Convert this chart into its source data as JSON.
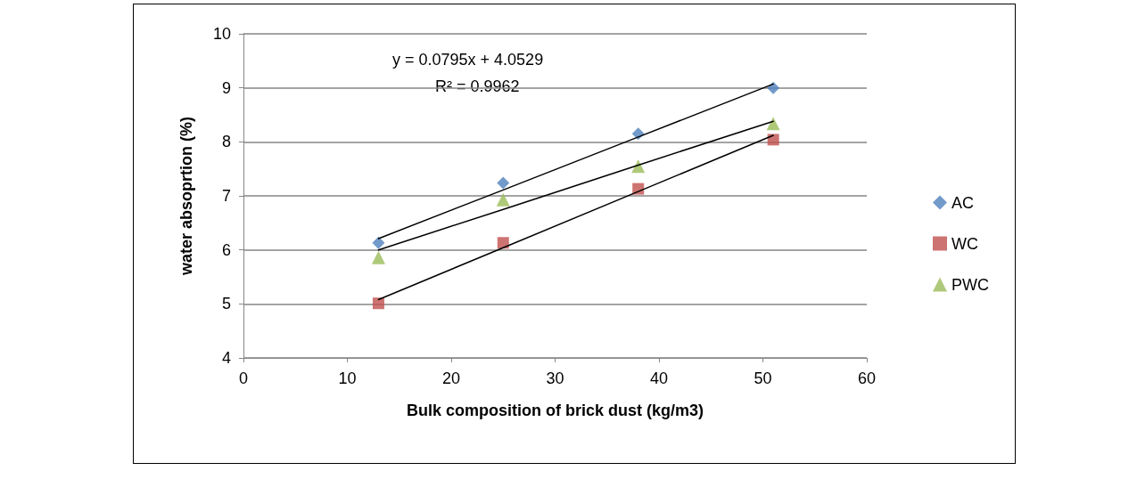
{
  "chart_data": {
    "type": "scatter",
    "xlabel": "Bulk composition of brick dust (kg/m3)",
    "ylabel": "water absoprtion (%)",
    "x": [
      13,
      25,
      38,
      51
    ],
    "series": [
      {
        "name": "AC",
        "color": "#4f81bd",
        "marker": "diamond",
        "values": [
          6.13,
          7.24,
          8.15,
          9.0
        ]
      },
      {
        "name": "WC",
        "color": "#c0504d",
        "marker": "square",
        "values": [
          5.01,
          6.13,
          7.13,
          8.04
        ]
      },
      {
        "name": "PWC",
        "color": "#9bbb59",
        "marker": "triangle",
        "values": [
          5.86,
          6.93,
          7.55,
          8.34
        ]
      },
      {
        "type": "line",
        "color": "#000000",
        "marker": "none",
        "values": [
          6.21,
          7.11,
          8.09,
          9.07
        ]
      },
      {
        "type": "line",
        "color": "#000000",
        "marker": "none",
        "values": [
          6.0,
          6.75,
          7.57,
          8.38
        ]
      },
      {
        "type": "line",
        "color": "#000000",
        "marker": "none",
        "values": [
          5.08,
          6.04,
          7.08,
          8.12
        ]
      }
    ],
    "annotations": [
      "y = 0.0795x + 4.0529",
      "R² = 0.9962"
    ],
    "xlim": [
      0,
      60
    ],
    "xticks": [
      0,
      10,
      20,
      30,
      40,
      50,
      60
    ],
    "ylim": [
      4,
      10
    ],
    "yticks": [
      4,
      5,
      6,
      7,
      8,
      9,
      10
    ],
    "grid": "y",
    "legend": "right"
  }
}
